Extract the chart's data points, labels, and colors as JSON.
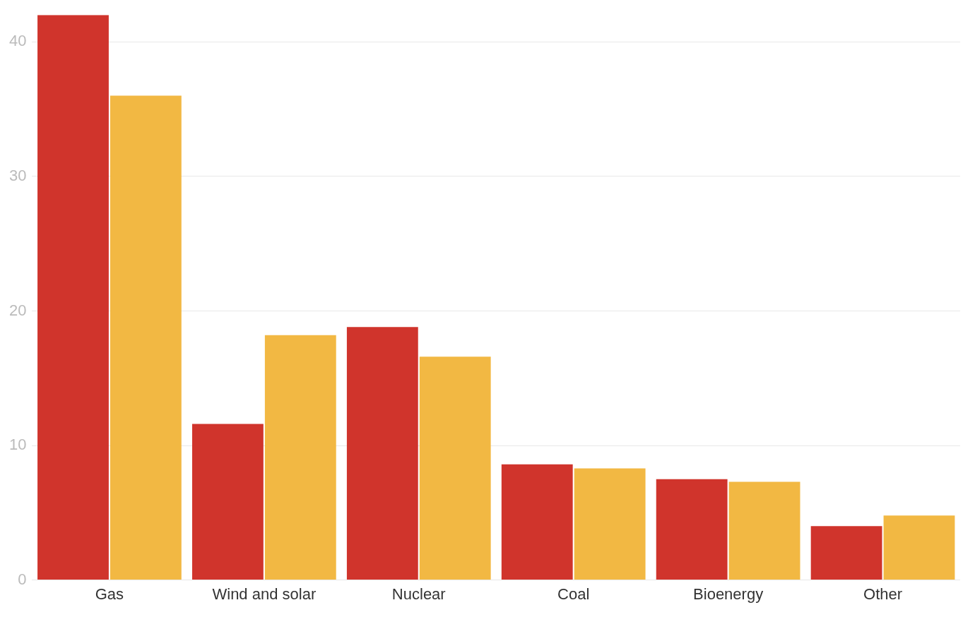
{
  "chart_data": {
    "type": "bar",
    "categories": [
      "Gas",
      "Wind and solar",
      "Nuclear",
      "Coal",
      "Bioenergy",
      "Other"
    ],
    "series": [
      {
        "color": "#d0342c",
        "values": [
          42,
          11.6,
          18.8,
          8.6,
          7.5,
          4.0
        ]
      },
      {
        "color": "#f2b843",
        "values": [
          36,
          18.2,
          16.6,
          8.3,
          7.3,
          4.8
        ]
      }
    ],
    "ylim": [
      0,
      42
    ],
    "yticks": [
      0,
      10,
      20,
      30,
      40
    ],
    "grid": "y",
    "legend": false
  }
}
